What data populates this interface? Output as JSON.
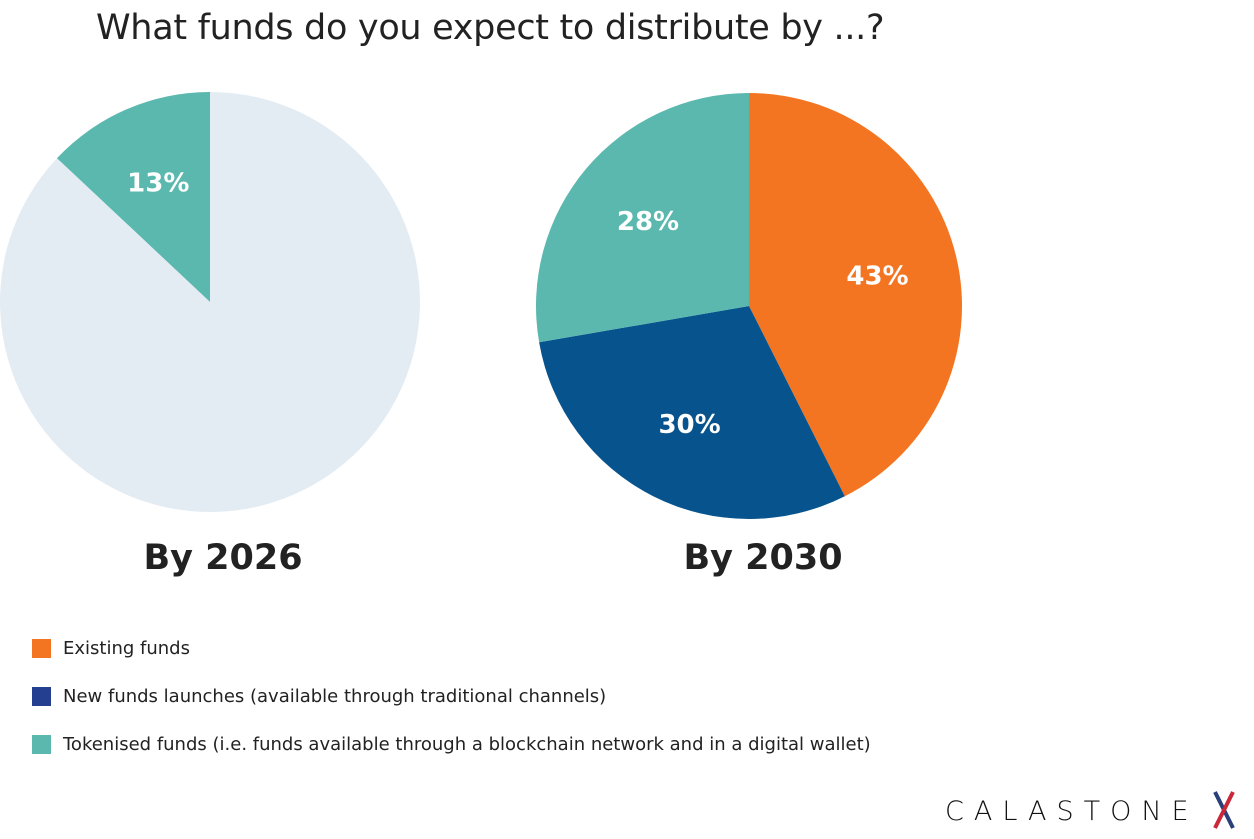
{
  "title": "What funds do you expect to distribute by ...?",
  "colors": {
    "existing": "#F47521",
    "new": "#06538E",
    "new_legend": "#243F8F",
    "tokenised": "#5BB8AE",
    "remainder": "#E4ECF3"
  },
  "chart_data": [
    {
      "type": "pie",
      "caption": "By 2026",
      "slices": [
        {
          "category": "Tokenised funds",
          "value": 13,
          "label": "13%",
          "color": "#5BB8AE"
        },
        {
          "category": "Other",
          "value": 87,
          "label": "",
          "color": "#E4ECF3"
        }
      ]
    },
    {
      "type": "pie",
      "caption": "By 2030",
      "slices": [
        {
          "category": "Existing funds",
          "value": 43,
          "label": "43%",
          "color": "#F47521"
        },
        {
          "category": "New funds launches",
          "value": 30,
          "label": "30%",
          "color": "#06538E"
        },
        {
          "category": "Tokenised funds",
          "value": 28,
          "label": "28%",
          "color": "#5BB8AE"
        }
      ]
    }
  ],
  "legend": [
    {
      "label": "Existing funds",
      "color": "#F47521"
    },
    {
      "label": "New funds launches (available through traditional channels)",
      "color": "#243F8F"
    },
    {
      "label": "Tokenised funds (i.e. funds available through a blockchain network and in a digital wallet)",
      "color": "#5BB8AE"
    }
  ],
  "logo": "CALASTONE"
}
